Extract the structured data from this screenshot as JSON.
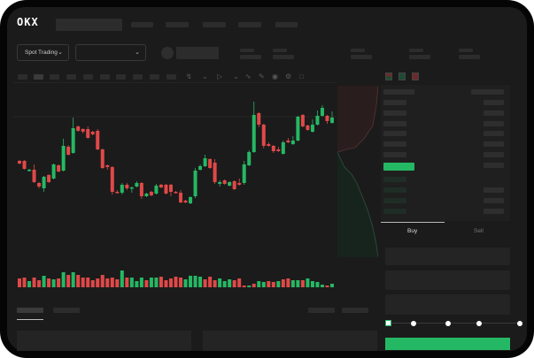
{
  "header": {
    "brand": "OKX"
  },
  "market_bar": {
    "mode_select": "Spot Trading",
    "pair_select": ""
  },
  "trade_panel": {
    "tabs": [
      "Buy",
      "Sell"
    ],
    "active_tab": "Buy",
    "slider_percent": 0
  },
  "colors": {
    "up": "#25b864",
    "down": "#e04848",
    "background": "#1b1b1b",
    "buy_button": "#25b864"
  },
  "chart_data": {
    "type": "candlestick",
    "ohlc": [
      [
        68,
        69,
        64,
        65
      ],
      [
        68,
        69,
        58,
        59
      ],
      [
        57,
        59,
        56,
        58
      ],
      [
        58,
        64,
        43,
        44
      ],
      [
        43,
        44,
        37,
        39
      ],
      [
        37,
        51,
        33,
        50
      ],
      [
        52,
        53,
        43,
        44
      ],
      [
        48,
        65,
        47,
        64
      ],
      [
        63,
        64,
        55,
        56
      ],
      [
        57,
        93,
        56,
        85
      ],
      [
        84,
        86,
        74,
        75
      ],
      [
        77,
        117,
        76,
        105
      ],
      [
        107,
        108,
        101,
        102
      ],
      [
        104,
        105,
        99,
        101
      ],
      [
        104,
        107,
        93,
        94
      ],
      [
        101,
        102,
        97,
        98
      ],
      [
        102,
        104,
        80,
        81
      ],
      [
        81,
        82,
        59,
        60
      ],
      [
        63,
        64,
        58,
        61
      ],
      [
        61,
        62,
        30,
        33
      ],
      [
        33,
        35,
        31,
        32
      ],
      [
        32,
        43,
        30,
        41
      ],
      [
        41,
        43,
        35,
        37
      ],
      [
        37,
        39,
        32,
        38
      ],
      [
        39,
        45,
        38,
        43
      ],
      [
        43,
        44,
        25,
        28
      ],
      [
        28,
        32,
        27,
        31
      ],
      [
        33,
        34,
        28,
        29
      ],
      [
        31,
        42,
        30,
        40
      ],
      [
        41,
        42,
        37,
        38
      ],
      [
        41,
        42,
        30,
        31
      ],
      [
        41,
        42,
        28,
        33
      ],
      [
        33,
        34,
        31,
        32
      ],
      [
        32,
        35,
        20,
        21
      ],
      [
        23,
        24,
        20,
        21
      ],
      [
        20,
        28,
        19,
        27
      ],
      [
        28,
        60,
        26,
        57
      ],
      [
        58,
        64,
        57,
        62
      ],
      [
        62,
        75,
        61,
        71
      ],
      [
        70,
        71,
        59,
        60
      ],
      [
        66,
        70,
        42,
        44
      ],
      [
        42,
        46,
        39,
        44
      ],
      [
        46,
        47,
        41,
        42
      ],
      [
        40,
        45,
        39,
        44
      ],
      [
        45,
        46,
        35,
        36
      ],
      [
        43,
        48,
        40,
        41
      ],
      [
        43,
        68,
        41,
        64
      ],
      [
        63,
        80,
        62,
        78
      ],
      [
        78,
        135,
        77,
        120
      ],
      [
        122,
        123,
        106,
        109
      ],
      [
        109,
        110,
        82,
        85
      ],
      [
        87,
        89,
        84,
        85
      ],
      [
        85,
        86,
        77,
        79
      ],
      [
        81,
        84,
        78,
        79
      ],
      [
        76,
        91,
        75,
        89
      ],
      [
        91,
        94,
        88,
        89
      ],
      [
        87,
        96,
        86,
        91
      ],
      [
        91,
        119,
        90,
        118
      ],
      [
        120,
        121,
        106,
        107
      ],
      [
        108,
        109,
        102,
        103
      ],
      [
        101,
        115,
        100,
        109
      ],
      [
        109,
        125,
        108,
        119
      ],
      [
        119,
        131,
        118,
        128
      ],
      [
        119,
        120,
        110,
        113
      ],
      [
        111,
        124,
        110,
        117
      ]
    ],
    "volume": [
      {
        "v": 10,
        "d": "down"
      },
      {
        "v": 11,
        "d": "down"
      },
      {
        "v": 7,
        "d": "up"
      },
      {
        "v": 11,
        "d": "down"
      },
      {
        "v": 8,
        "d": "down"
      },
      {
        "v": 13,
        "d": "up"
      },
      {
        "v": 10,
        "d": "down"
      },
      {
        "v": 9,
        "d": "up"
      },
      {
        "v": 10,
        "d": "down"
      },
      {
        "v": 17,
        "d": "up"
      },
      {
        "v": 14,
        "d": "down"
      },
      {
        "v": 17,
        "d": "up"
      },
      {
        "v": 14,
        "d": "down"
      },
      {
        "v": 11,
        "d": "down"
      },
      {
        "v": 11,
        "d": "down"
      },
      {
        "v": 8,
        "d": "down"
      },
      {
        "v": 10,
        "d": "down"
      },
      {
        "v": 14,
        "d": "down"
      },
      {
        "v": 10,
        "d": "down"
      },
      {
        "v": 11,
        "d": "down"
      },
      {
        "v": 9,
        "d": "down"
      },
      {
        "v": 19,
        "d": "up"
      },
      {
        "v": 11,
        "d": "down"
      },
      {
        "v": 11,
        "d": "up"
      },
      {
        "v": 7,
        "d": "up"
      },
      {
        "v": 11,
        "d": "up"
      },
      {
        "v": 8,
        "d": "down"
      },
      {
        "v": 11,
        "d": "up"
      },
      {
        "v": 11,
        "d": "up"
      },
      {
        "v": 12,
        "d": "down"
      },
      {
        "v": 8,
        "d": "down"
      },
      {
        "v": 10,
        "d": "down"
      },
      {
        "v": 12,
        "d": "down"
      },
      {
        "v": 11,
        "d": "down"
      },
      {
        "v": 9,
        "d": "up"
      },
      {
        "v": 13,
        "d": "up"
      },
      {
        "v": 13,
        "d": "up"
      },
      {
        "v": 12,
        "d": "up"
      },
      {
        "v": 9,
        "d": "down"
      },
      {
        "v": 12,
        "d": "down"
      },
      {
        "v": 8,
        "d": "down"
      },
      {
        "v": 10,
        "d": "up"
      },
      {
        "v": 7,
        "d": "up"
      },
      {
        "v": 9,
        "d": "up"
      },
      {
        "v": 8,
        "d": "down"
      },
      {
        "v": 10,
        "d": "down"
      },
      {
        "v": 2,
        "d": "down"
      },
      {
        "v": 2,
        "d": "up"
      },
      {
        "v": 4,
        "d": "down"
      },
      {
        "v": 7,
        "d": "up"
      },
      {
        "v": 6,
        "d": "up"
      },
      {
        "v": 7,
        "d": "down"
      },
      {
        "v": 6,
        "d": "down"
      },
      {
        "v": 7,
        "d": "up"
      },
      {
        "v": 9,
        "d": "down"
      },
      {
        "v": 10,
        "d": "down"
      },
      {
        "v": 8,
        "d": "up"
      },
      {
        "v": 8,
        "d": "up"
      },
      {
        "v": 8,
        "d": "down"
      },
      {
        "v": 10,
        "d": "up"
      },
      {
        "v": 7,
        "d": "up"
      },
      {
        "v": 6,
        "d": "up"
      },
      {
        "v": 3,
        "d": "up"
      },
      {
        "v": 2,
        "d": "down"
      },
      {
        "v": 4,
        "d": "up"
      }
    ]
  }
}
